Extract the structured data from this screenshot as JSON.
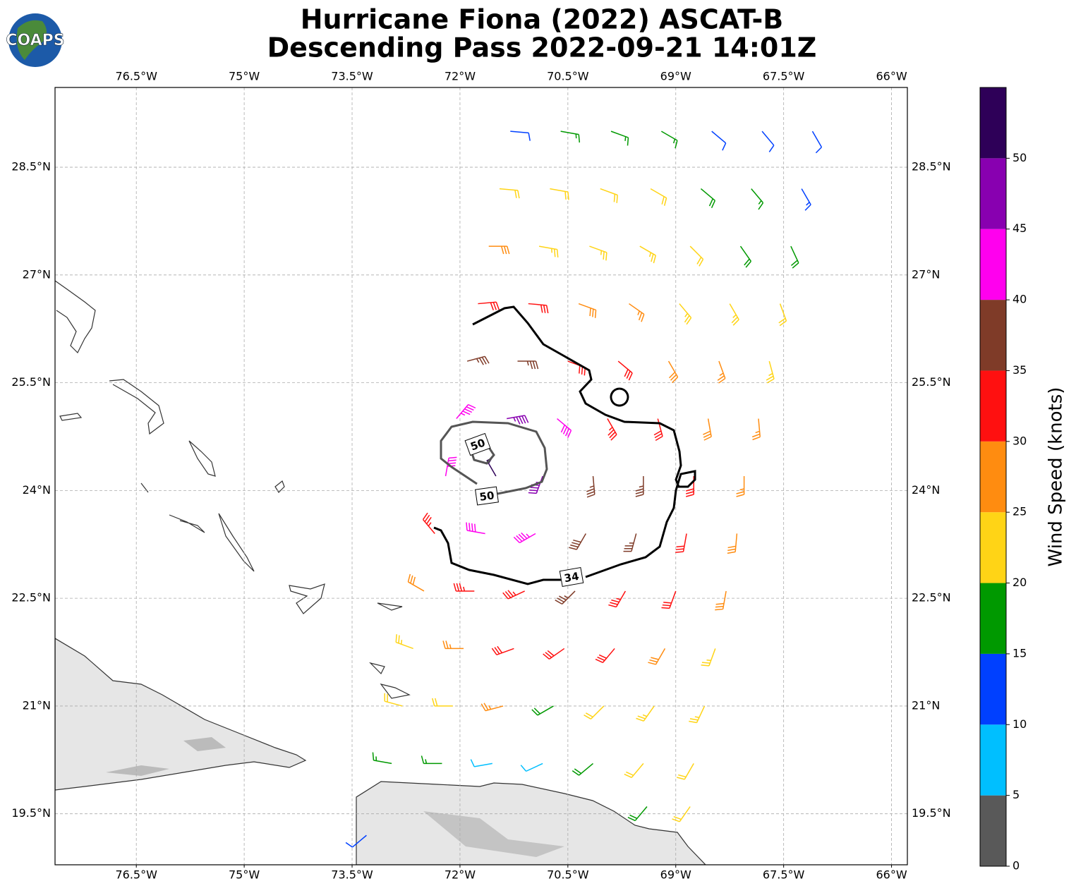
{
  "logo": "COAPS",
  "title": [
    "Hurricane Fiona (2022) ASCAT-B",
    "Descending Pass 2022-09-21 14:01Z"
  ],
  "map": {
    "xlim": [
      -77.63,
      -65.78
    ],
    "ylim": [
      18.79,
      29.61
    ],
    "grid": true,
    "xticks": [
      {
        "value": -76.5,
        "label": "76.5°W"
      },
      {
        "value": -75,
        "label": "75°W"
      },
      {
        "value": -73.5,
        "label": "73.5°W"
      },
      {
        "value": -72,
        "label": "72°W"
      },
      {
        "value": -70.5,
        "label": "70.5°W"
      },
      {
        "value": -69,
        "label": "69°W"
      },
      {
        "value": -67.5,
        "label": "67.5°W"
      },
      {
        "value": -66,
        "label": "66°W"
      }
    ],
    "yticks": [
      {
        "value": 19.5,
        "label": "19.5°N"
      },
      {
        "value": 21,
        "label": "21°N"
      },
      {
        "value": 22.5,
        "label": "22.5°N"
      },
      {
        "value": 24,
        "label": "24°N"
      },
      {
        "value": 25.5,
        "label": "25.5°N"
      },
      {
        "value": 27,
        "label": "27°N"
      },
      {
        "value": 28.5,
        "label": "28.5°N"
      }
    ],
    "contours": [
      {
        "level": 34,
        "color": "#000000",
        "labels": [
          {
            "value": 34,
            "label": "34"
          }
        ]
      },
      {
        "level": 50,
        "color": "#555555",
        "labels": [
          {
            "value": 50,
            "label": "50"
          },
          {
            "value": 50,
            "label": "50"
          }
        ]
      }
    ],
    "barbs": [
      [
        -71.3,
        29.0,
        12,
        95
      ],
      [
        -70.6,
        29.0,
        15,
        100
      ],
      [
        -69.9,
        29.0,
        17,
        110
      ],
      [
        -69.2,
        29.0,
        17,
        120
      ],
      [
        -68.5,
        29.0,
        12,
        130
      ],
      [
        -67.8,
        29.0,
        12,
        140
      ],
      [
        -67.1,
        29.0,
        12,
        150
      ],
      [
        -71.45,
        28.2,
        22,
        95
      ],
      [
        -70.75,
        28.2,
        22,
        100
      ],
      [
        -70.05,
        28.2,
        22,
        110
      ],
      [
        -69.35,
        28.2,
        20,
        120
      ],
      [
        -68.65,
        28.2,
        18,
        130
      ],
      [
        -67.95,
        28.2,
        17,
        140
      ],
      [
        -67.25,
        28.2,
        13,
        150
      ],
      [
        -71.6,
        27.4,
        28,
        90
      ],
      [
        -70.9,
        27.4,
        23,
        100
      ],
      [
        -70.2,
        27.4,
        23,
        110
      ],
      [
        -69.5,
        27.4,
        23,
        120
      ],
      [
        -68.8,
        27.4,
        22,
        135
      ],
      [
        -68.1,
        27.4,
        19,
        145
      ],
      [
        -67.4,
        27.4,
        18,
        155
      ],
      [
        -71.75,
        26.6,
        32,
        85
      ],
      [
        -71.05,
        26.6,
        32,
        95
      ],
      [
        -70.35,
        26.6,
        28,
        110
      ],
      [
        -69.65,
        26.6,
        27,
        125
      ],
      [
        -68.95,
        26.6,
        24,
        140
      ],
      [
        -68.25,
        26.6,
        23,
        150
      ],
      [
        -67.55,
        26.6,
        22,
        160
      ],
      [
        -71.9,
        25.8,
        37,
        75
      ],
      [
        -71.2,
        25.8,
        37,
        90
      ],
      [
        -70.5,
        25.8,
        32,
        110
      ],
      [
        -69.8,
        25.8,
        30,
        130
      ],
      [
        -69.1,
        25.8,
        28,
        150
      ],
      [
        -68.4,
        25.8,
        26,
        160
      ],
      [
        -67.7,
        25.8,
        23,
        165
      ],
      [
        -72.05,
        25.0,
        43,
        40
      ],
      [
        -71.35,
        25.0,
        45,
        80
      ],
      [
        -70.65,
        25.0,
        42,
        130
      ],
      [
        -69.95,
        25.0,
        33,
        150
      ],
      [
        -69.25,
        25.0,
        31,
        165
      ],
      [
        -68.55,
        25.0,
        28,
        170
      ],
      [
        -67.85,
        25.0,
        26,
        175
      ],
      [
        -72.2,
        24.2,
        42,
        10
      ],
      [
        -71.5,
        24.2,
        52,
        330
      ],
      [
        -70.85,
        24.2,
        46,
        200
      ],
      [
        -70.15,
        24.2,
        37,
        175
      ],
      [
        -69.45,
        24.2,
        36,
        180
      ],
      [
        -68.75,
        24.2,
        31,
        180
      ],
      [
        -68.05,
        24.2,
        27,
        180
      ],
      [
        -72.35,
        23.4,
        33,
        320
      ],
      [
        -71.65,
        23.4,
        40,
        280
      ],
      [
        -70.95,
        23.4,
        43,
        240
      ],
      [
        -70.25,
        23.4,
        38,
        210
      ],
      [
        -69.55,
        23.4,
        37,
        195
      ],
      [
        -68.85,
        23.4,
        32,
        190
      ],
      [
        -68.15,
        23.4,
        28,
        185
      ],
      [
        -72.5,
        22.6,
        28,
        300
      ],
      [
        -71.8,
        22.6,
        33,
        270
      ],
      [
        -71.1,
        22.6,
        34,
        245
      ],
      [
        -70.4,
        22.6,
        36,
        225
      ],
      [
        -69.7,
        22.6,
        34,
        210
      ],
      [
        -69.0,
        22.6,
        32,
        200
      ],
      [
        -68.3,
        22.6,
        28,
        190
      ],
      [
        -72.65,
        21.8,
        24,
        290
      ],
      [
        -71.95,
        21.8,
        27,
        270
      ],
      [
        -71.25,
        21.8,
        30,
        250
      ],
      [
        -70.55,
        21.8,
        30,
        235
      ],
      [
        -69.85,
        21.8,
        31,
        220
      ],
      [
        -69.15,
        21.8,
        28,
        210
      ],
      [
        -68.45,
        21.8,
        24,
        200
      ],
      [
        -72.8,
        21.0,
        22,
        285
      ],
      [
        -72.1,
        21.0,
        22,
        270
      ],
      [
        -71.4,
        21.0,
        27,
        255
      ],
      [
        -70.7,
        21.0,
        18,
        240
      ],
      [
        -70.0,
        21.0,
        22,
        225
      ],
      [
        -69.3,
        21.0,
        23,
        215
      ],
      [
        -68.6,
        21.0,
        23,
        205
      ],
      [
        -72.95,
        20.2,
        17,
        280
      ],
      [
        -72.25,
        20.2,
        16,
        270
      ],
      [
        -71.55,
        20.2,
        9,
        260
      ],
      [
        -70.85,
        20.2,
        8,
        245
      ],
      [
        -70.15,
        20.2,
        18,
        230
      ],
      [
        -69.45,
        20.2,
        22,
        220
      ],
      [
        -68.75,
        20.2,
        21,
        210
      ],
      [
        -69.4,
        19.6,
        18,
        220
      ],
      [
        -68.8,
        19.6,
        20,
        215
      ],
      [
        -73.3,
        19.2,
        12,
        230
      ]
    ]
  },
  "colorbar": {
    "label": "Wind Speed (knots)",
    "lim": [
      0,
      55
    ],
    "bounds": [
      0,
      5,
      10,
      15,
      20,
      25,
      30,
      35,
      40,
      45,
      50,
      55
    ],
    "colors": [
      "#595959",
      "#00bfff",
      "#0040ff",
      "#009900",
      "#ffd416",
      "#ff8c10",
      "#ff1010",
      "#7f3b28",
      "#ff00ee",
      "#8800b0",
      "#2e0058"
    ],
    "ticks": [
      0,
      5,
      10,
      15,
      20,
      25,
      30,
      35,
      40,
      45,
      50
    ]
  }
}
